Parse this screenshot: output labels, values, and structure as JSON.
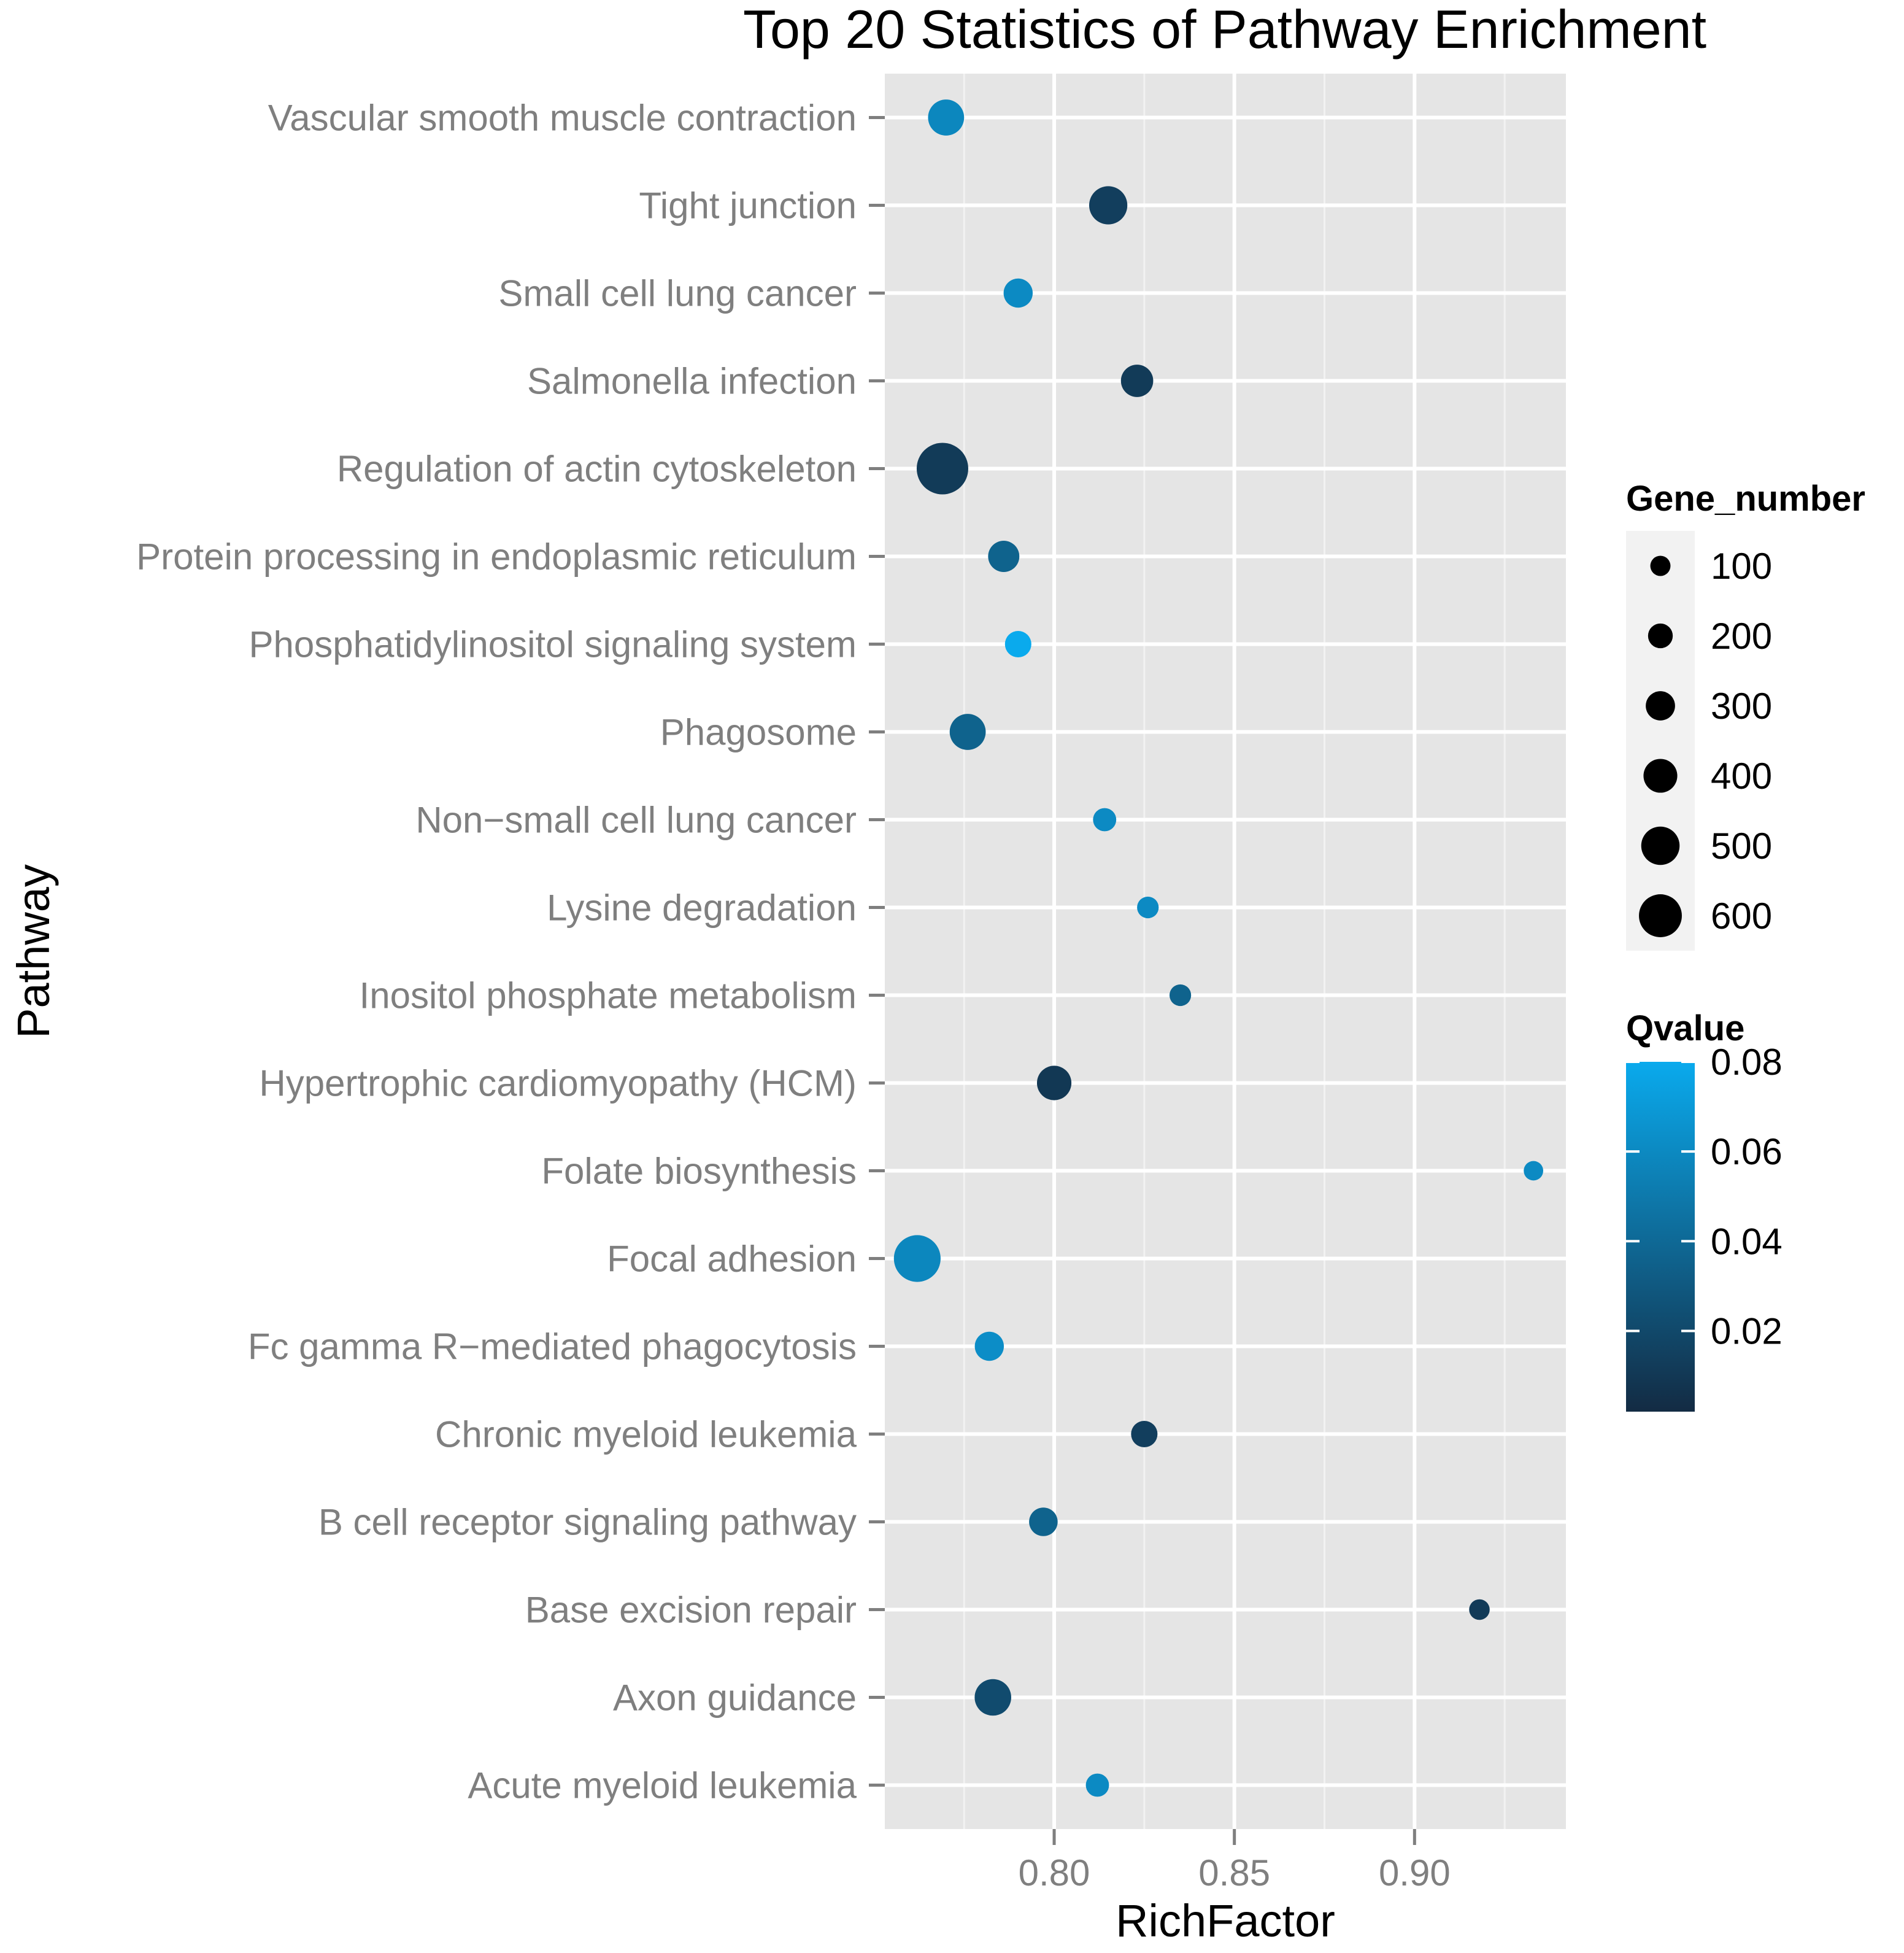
{
  "chart_data": {
    "type": "scatter",
    "title": "Top 20 Statistics of Pathway Enrichment",
    "xlabel": "RichFactor",
    "ylabel": "Pathway",
    "xlim": [
      0.753,
      0.942
    ],
    "xticks": [
      "0.80",
      "0.85",
      "0.90"
    ],
    "xtick_values": [
      0.8,
      0.85,
      0.9
    ],
    "grid": true,
    "categories": [
      "Vascular smooth muscle contraction",
      "Tight junction",
      "Small cell lung cancer",
      "Salmonella infection",
      "Regulation of actin cytoskeleton",
      "Protein processing in endoplasmic reticulum",
      "Phosphatidylinositol signaling system",
      "Phagosome",
      "Non−small cell lung cancer",
      "Lysine degradation",
      "Inositol phosphate metabolism",
      "Hypertrophic cardiomyopathy (HCM)",
      "Folate biosynthesis",
      "Focal adhesion",
      "Fc gamma R−mediated phagocytosis",
      "Chronic myeloid leukemia",
      "B cell receptor signaling pathway",
      "Base excision repair",
      "Axon guidance",
      "Acute myeloid leukemia"
    ],
    "points": [
      {
        "pathway": "Vascular smooth muscle contraction",
        "rich_factor": 0.77,
        "gene_number": 330,
        "qvalue": 0.058
      },
      {
        "pathway": "Tight junction",
        "rich_factor": 0.815,
        "gene_number": 370,
        "qvalue": 0.012
      },
      {
        "pathway": "Small cell lung cancer",
        "rich_factor": 0.79,
        "gene_number": 200,
        "qvalue": 0.06
      },
      {
        "pathway": "Salmonella infection",
        "rich_factor": 0.823,
        "gene_number": 260,
        "qvalue": 0.01
      },
      {
        "pathway": "Regulation of actin cytoskeleton",
        "rich_factor": 0.769,
        "gene_number": 620,
        "qvalue": 0.01
      },
      {
        "pathway": "Protein processing in endoplasmic reticulum",
        "rich_factor": 0.786,
        "gene_number": 240,
        "qvalue": 0.035
      },
      {
        "pathway": "Phosphatidylinositol signaling system",
        "rich_factor": 0.79,
        "gene_number": 150,
        "qvalue": 0.08
      },
      {
        "pathway": "Phagosome",
        "rich_factor": 0.776,
        "gene_number": 330,
        "qvalue": 0.035
      },
      {
        "pathway": "Non−small cell lung cancer",
        "rich_factor": 0.814,
        "gene_number": 90,
        "qvalue": 0.06
      },
      {
        "pathway": "Lysine degradation",
        "rich_factor": 0.826,
        "gene_number": 60,
        "qvalue": 0.06
      },
      {
        "pathway": "Inositol phosphate metabolism",
        "rich_factor": 0.835,
        "gene_number": 60,
        "qvalue": 0.035
      },
      {
        "pathway": "Hypertrophic cardiomyopathy (HCM)",
        "rich_factor": 0.8,
        "gene_number": 300,
        "qvalue": 0.008
      },
      {
        "pathway": "Folate biosynthesis",
        "rich_factor": 0.933,
        "gene_number": 20,
        "qvalue": 0.06
      },
      {
        "pathway": "Focal adhesion",
        "rich_factor": 0.762,
        "gene_number": 530,
        "qvalue": 0.058
      },
      {
        "pathway": "Fc gamma R−mediated phagocytosis",
        "rich_factor": 0.782,
        "gene_number": 200,
        "qvalue": 0.062
      },
      {
        "pathway": "Chronic myeloid leukemia",
        "rich_factor": 0.825,
        "gene_number": 150,
        "qvalue": 0.012
      },
      {
        "pathway": "B cell receptor signaling pathway",
        "rich_factor": 0.797,
        "gene_number": 190,
        "qvalue": 0.035
      },
      {
        "pathway": "Base excision repair",
        "rich_factor": 0.918,
        "gene_number": 40,
        "qvalue": 0.01
      },
      {
        "pathway": "Axon guidance",
        "rich_factor": 0.783,
        "gene_number": 340,
        "qvalue": 0.02
      },
      {
        "pathway": "Acute myeloid leukemia",
        "rich_factor": 0.812,
        "gene_number": 90,
        "qvalue": 0.06
      }
    ],
    "size_legend": {
      "title": "Gene_number",
      "values": [
        100,
        200,
        300,
        400,
        500,
        600
      ],
      "labels": [
        "100",
        "200",
        "300",
        "400",
        "500",
        "600"
      ]
    },
    "color_legend": {
      "title": "Qvalue",
      "range": [
        0.0,
        0.08
      ],
      "ticks": [
        0.08,
        0.06,
        0.04,
        0.02
      ],
      "labels": [
        "0.08",
        "0.06",
        "0.04",
        "0.02"
      ],
      "low_color": "#132b43",
      "high_color": "#0aaaed"
    },
    "colors": {
      "panel_background": "#e5e5e5",
      "grid_major": "#ffffff",
      "grid_minor": "#f2f2f2",
      "tick_label": "#7f7f7f"
    }
  }
}
